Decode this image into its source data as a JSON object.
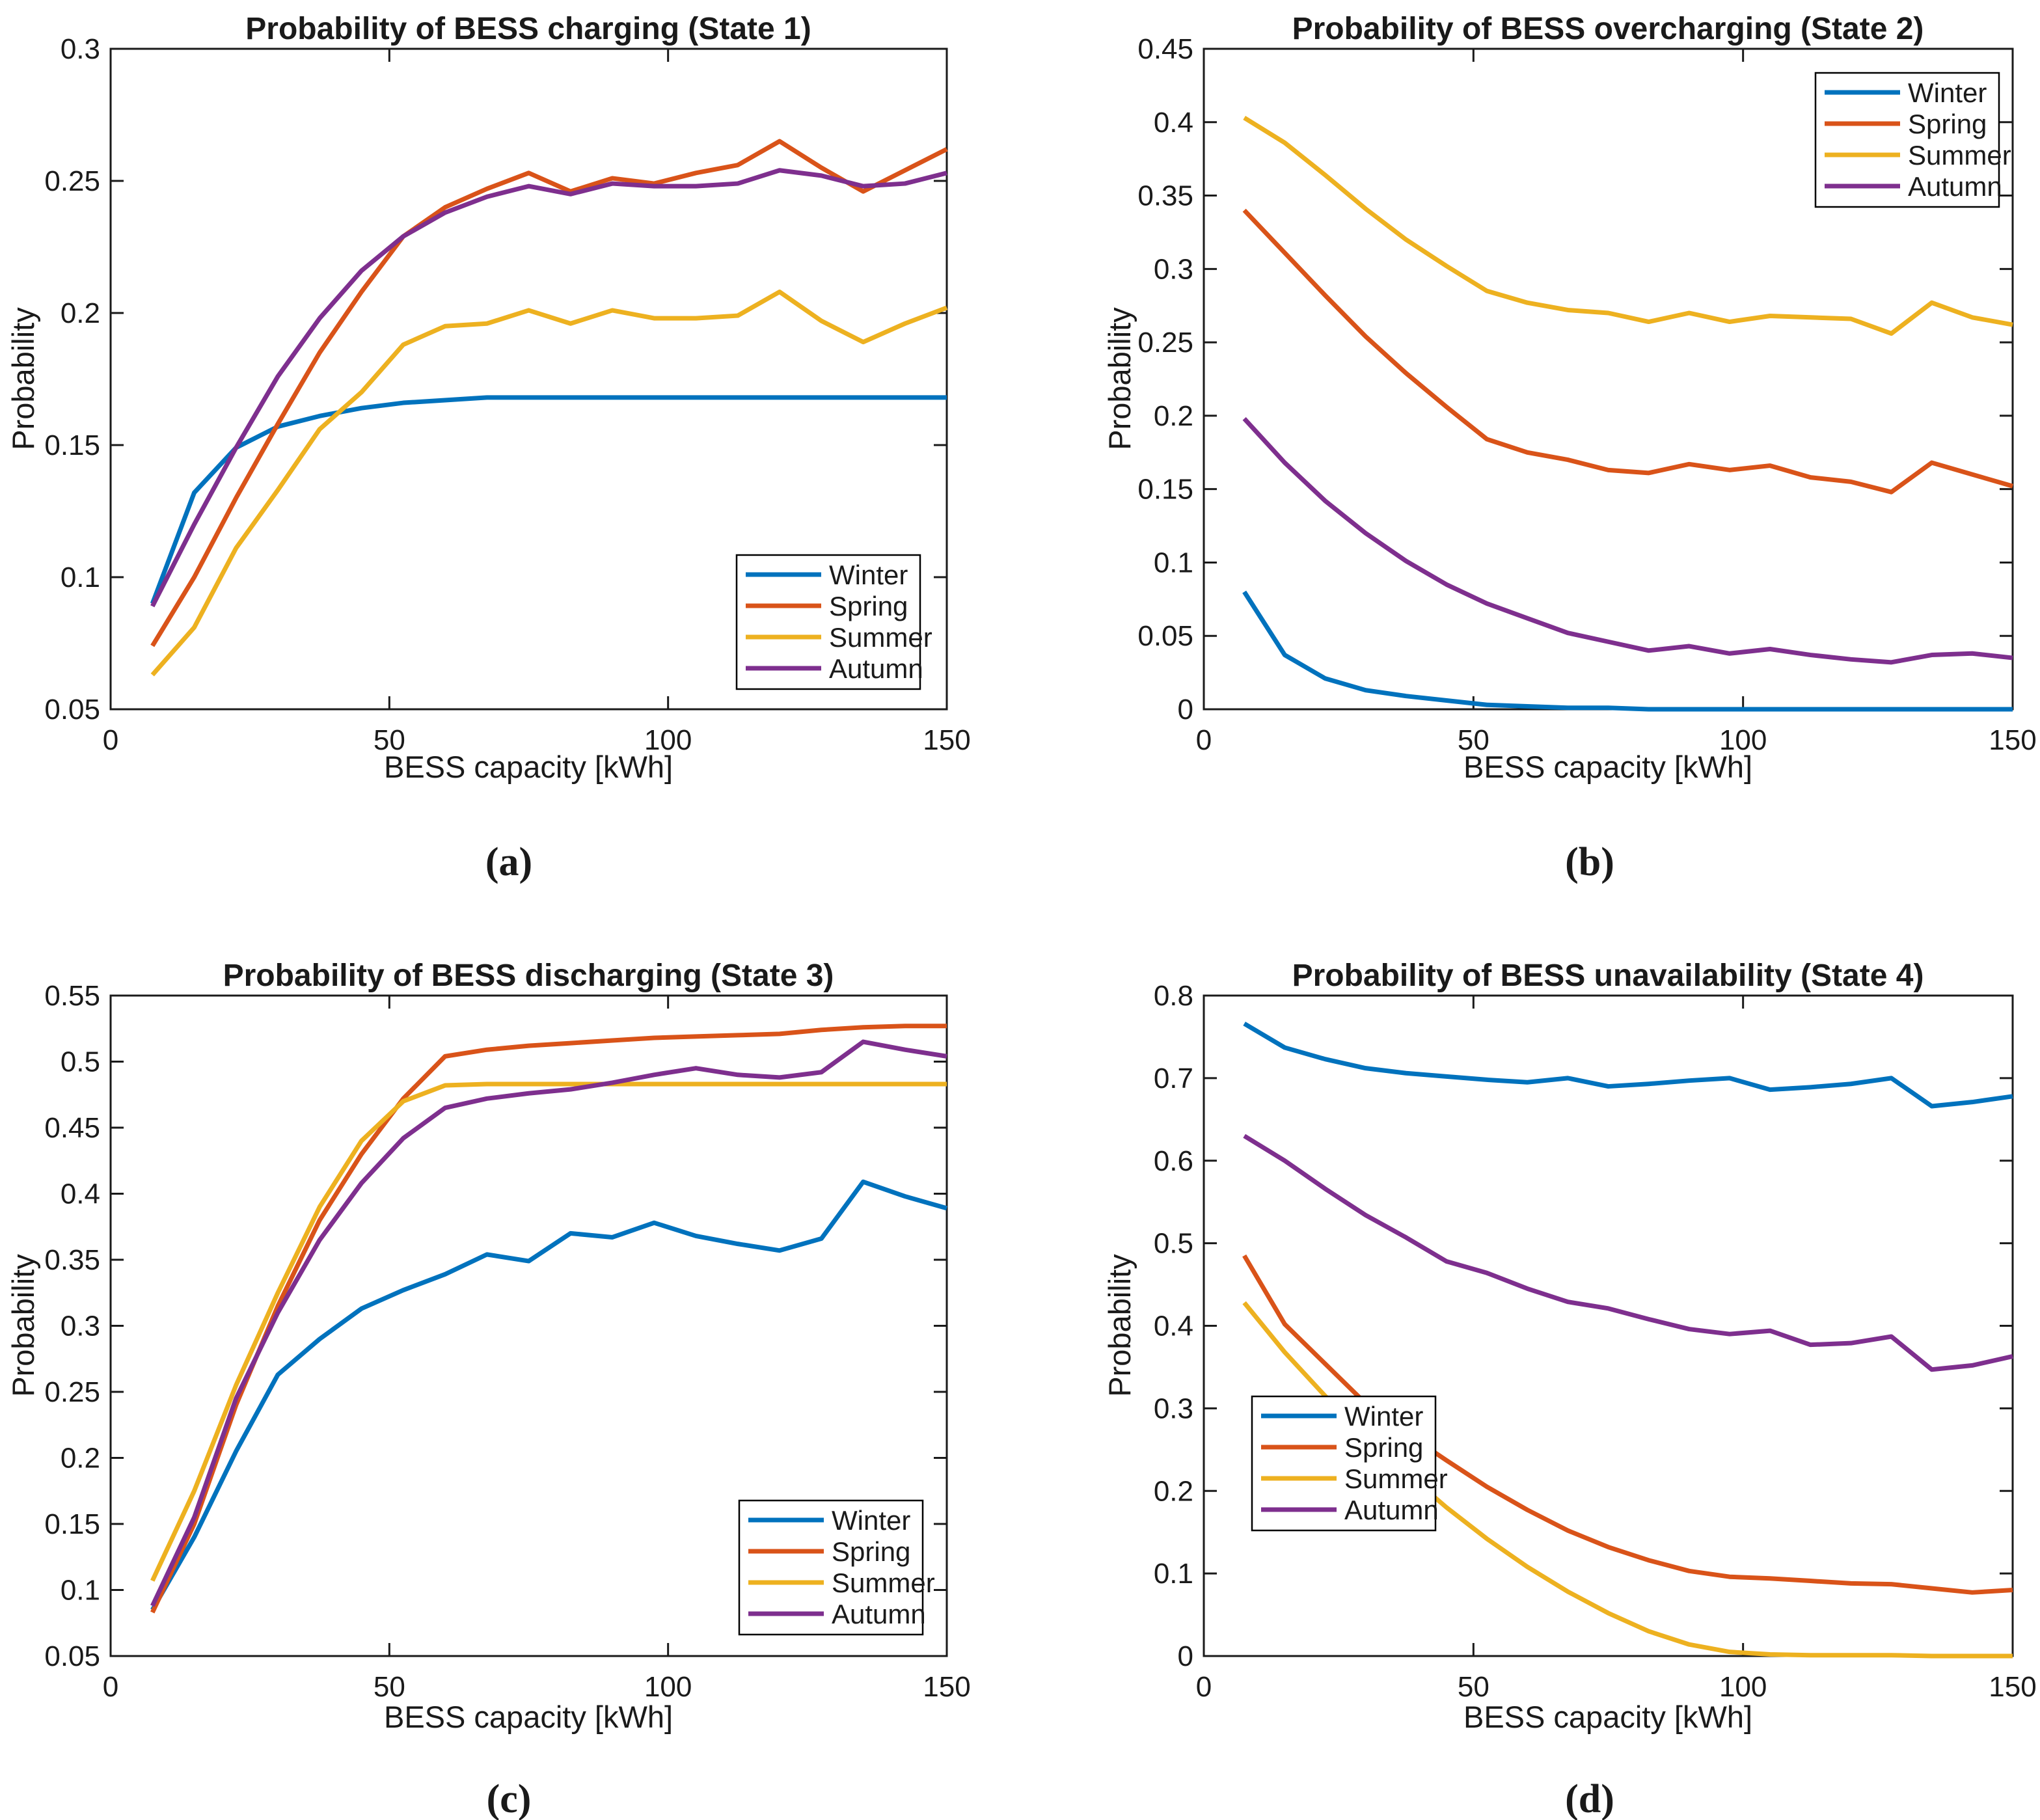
{
  "figure": {
    "background": "#ffffff"
  },
  "palette": {
    "Winter": "#0072BD",
    "Spring": "#D95319",
    "Summer": "#EDB120",
    "Autumn": "#7E2F8E"
  },
  "chart_data": [
    {
      "type": "line",
      "title": "Probability of BESS charging (State 1)",
      "caption": "(a)",
      "xlabel": "BESS capacity [kWh]",
      "ylabel": "Probability",
      "xlim": [
        0,
        150
      ],
      "ylim": [
        0.05,
        0.3
      ],
      "xticks": [
        0,
        50,
        100,
        150
      ],
      "yticks": [
        0.05,
        0.1,
        0.15,
        0.2,
        0.25,
        0.3
      ],
      "grid": false,
      "legend_position": "lower right",
      "x": [
        7.5,
        15,
        22.5,
        30,
        37.5,
        45,
        52.5,
        60,
        67.5,
        75,
        82.5,
        90,
        97.5,
        105,
        112.5,
        120,
        127.5,
        135,
        142.5,
        150
      ],
      "series": [
        {
          "name": "Winter",
          "values": [
            0.09,
            0.132,
            0.149,
            0.157,
            0.161,
            0.164,
            0.166,
            0.167,
            0.168,
            0.168,
            0.168,
            0.168,
            0.168,
            0.168,
            0.168,
            0.168,
            0.168,
            0.168,
            0.168,
            0.168
          ]
        },
        {
          "name": "Spring",
          "values": [
            0.074,
            0.1,
            0.13,
            0.158,
            0.185,
            0.208,
            0.229,
            0.24,
            0.247,
            0.253,
            0.246,
            0.251,
            0.249,
            0.253,
            0.256,
            0.265,
            0.255,
            0.246,
            0.254,
            0.262
          ]
        },
        {
          "name": "Summer",
          "values": [
            0.063,
            0.081,
            0.111,
            0.133,
            0.156,
            0.17,
            0.188,
            0.195,
            0.196,
            0.201,
            0.196,
            0.201,
            0.198,
            0.198,
            0.199,
            0.208,
            0.197,
            0.189,
            0.196,
            0.202
          ]
        },
        {
          "name": "Autumn",
          "values": [
            0.089,
            0.12,
            0.149,
            0.176,
            0.198,
            0.216,
            0.229,
            0.238,
            0.244,
            0.248,
            0.245,
            0.249,
            0.248,
            0.248,
            0.249,
            0.254,
            0.252,
            0.248,
            0.249,
            0.253
          ]
        }
      ]
    },
    {
      "type": "line",
      "title": "Probability of BESS overcharging (State 2)",
      "caption": "(b)",
      "xlabel": "BESS capacity [kWh]",
      "ylabel": "Probability",
      "xlim": [
        0,
        150
      ],
      "ylim": [
        0,
        0.45
      ],
      "xticks": [
        0,
        50,
        100,
        150
      ],
      "yticks": [
        0,
        0.05,
        0.1,
        0.15,
        0.2,
        0.25,
        0.3,
        0.35,
        0.4,
        0.45
      ],
      "grid": false,
      "legend_position": "upper right",
      "x": [
        7.5,
        15,
        22.5,
        30,
        37.5,
        45,
        52.5,
        60,
        67.5,
        75,
        82.5,
        90,
        97.5,
        105,
        112.5,
        120,
        127.5,
        135,
        142.5,
        150
      ],
      "series": [
        {
          "name": "Winter",
          "values": [
            0.08,
            0.037,
            0.021,
            0.013,
            0.009,
            0.006,
            0.003,
            0.002,
            0.001,
            0.001,
            0.0,
            0.0,
            0.0,
            0.0,
            0.0,
            0.0,
            0.0,
            0.0,
            0.0,
            0.0
          ]
        },
        {
          "name": "Spring",
          "values": [
            0.34,
            0.311,
            0.282,
            0.254,
            0.229,
            0.206,
            0.184,
            0.175,
            0.17,
            0.163,
            0.161,
            0.167,
            0.163,
            0.166,
            0.158,
            0.155,
            0.148,
            0.168,
            0.16,
            0.152
          ]
        },
        {
          "name": "Summer",
          "values": [
            0.403,
            0.386,
            0.364,
            0.341,
            0.32,
            0.302,
            0.285,
            0.277,
            0.272,
            0.27,
            0.264,
            0.27,
            0.264,
            0.268,
            0.267,
            0.266,
            0.256,
            0.277,
            0.267,
            0.262
          ]
        },
        {
          "name": "Autumn",
          "values": [
            0.198,
            0.168,
            0.142,
            0.12,
            0.101,
            0.085,
            0.072,
            0.062,
            0.052,
            0.046,
            0.04,
            0.043,
            0.038,
            0.041,
            0.037,
            0.034,
            0.032,
            0.037,
            0.038,
            0.035
          ]
        }
      ]
    },
    {
      "type": "line",
      "title": "Probability of BESS discharging (State 3)",
      "caption": "(c)",
      "xlabel": "BESS capacity [kWh]",
      "ylabel": "Probability",
      "xlim": [
        0,
        150
      ],
      "ylim": [
        0.05,
        0.55
      ],
      "xticks": [
        0,
        50,
        100,
        150
      ],
      "yticks": [
        0.05,
        0.1,
        0.15,
        0.2,
        0.25,
        0.3,
        0.35,
        0.4,
        0.45,
        0.5,
        0.55
      ],
      "grid": false,
      "legend_position": "lower right",
      "x": [
        7.5,
        15,
        22.5,
        30,
        37.5,
        45,
        52.5,
        60,
        67.5,
        75,
        82.5,
        90,
        97.5,
        105,
        112.5,
        120,
        127.5,
        135,
        142.5,
        150
      ],
      "series": [
        {
          "name": "Winter",
          "values": [
            0.085,
            0.14,
            0.205,
            0.263,
            0.29,
            0.313,
            0.327,
            0.339,
            0.354,
            0.349,
            0.37,
            0.367,
            0.378,
            0.368,
            0.362,
            0.357,
            0.366,
            0.409,
            0.398,
            0.389
          ]
        },
        {
          "name": "Spring",
          "values": [
            0.083,
            0.15,
            0.24,
            0.315,
            0.38,
            0.43,
            0.472,
            0.504,
            0.509,
            0.512,
            0.514,
            0.516,
            0.518,
            0.519,
            0.52,
            0.521,
            0.524,
            0.526,
            0.527,
            0.527
          ]
        },
        {
          "name": "Summer",
          "values": [
            0.107,
            0.175,
            0.255,
            0.325,
            0.39,
            0.44,
            0.47,
            0.482,
            0.483,
            0.483,
            0.483,
            0.483,
            0.483,
            0.483,
            0.483,
            0.483,
            0.483,
            0.483,
            0.483,
            0.483
          ]
        },
        {
          "name": "Autumn",
          "values": [
            0.088,
            0.155,
            0.245,
            0.31,
            0.365,
            0.408,
            0.442,
            0.465,
            0.472,
            0.476,
            0.479,
            0.484,
            0.49,
            0.495,
            0.49,
            0.488,
            0.492,
            0.515,
            0.509,
            0.504
          ]
        }
      ]
    },
    {
      "type": "line",
      "title": "Probability of BESS unavailability (State 4)",
      "caption": "(d)",
      "xlabel": "BESS capacity [kWh]",
      "ylabel": "Probability",
      "xlim": [
        0,
        150
      ],
      "ylim": [
        0,
        0.8
      ],
      "xticks": [
        0,
        50,
        100,
        150
      ],
      "yticks": [
        0,
        0.1,
        0.2,
        0.3,
        0.4,
        0.5,
        0.6,
        0.7,
        0.8
      ],
      "grid": false,
      "legend_position": "lower left",
      "x": [
        7.5,
        15,
        22.5,
        30,
        37.5,
        45,
        52.5,
        60,
        67.5,
        75,
        82.5,
        90,
        97.5,
        105,
        112.5,
        120,
        127.5,
        135,
        142.5,
        150
      ],
      "series": [
        {
          "name": "Winter",
          "values": [
            0.766,
            0.737,
            0.723,
            0.712,
            0.706,
            0.702,
            0.698,
            0.695,
            0.7,
            0.69,
            0.693,
            0.697,
            0.7,
            0.686,
            0.689,
            0.693,
            0.7,
            0.666,
            0.671,
            0.678
          ]
        },
        {
          "name": "Spring",
          "values": [
            0.485,
            0.402,
            0.354,
            0.306,
            0.27,
            0.237,
            0.205,
            0.177,
            0.152,
            0.132,
            0.116,
            0.103,
            0.096,
            0.094,
            0.091,
            0.088,
            0.087,
            0.082,
            0.077,
            0.08
          ]
        },
        {
          "name": "Summer",
          "values": [
            0.428,
            0.368,
            0.315,
            0.266,
            0.222,
            0.18,
            0.142,
            0.108,
            0.078,
            0.052,
            0.03,
            0.014,
            0.005,
            0.002,
            0.001,
            0.001,
            0.001,
            0.0,
            0.0,
            0.0
          ]
        },
        {
          "name": "Autumn",
          "values": [
            0.63,
            0.6,
            0.566,
            0.534,
            0.507,
            0.478,
            0.464,
            0.445,
            0.429,
            0.421,
            0.408,
            0.396,
            0.39,
            0.394,
            0.377,
            0.379,
            0.387,
            0.347,
            0.352,
            0.363
          ]
        }
      ]
    }
  ]
}
